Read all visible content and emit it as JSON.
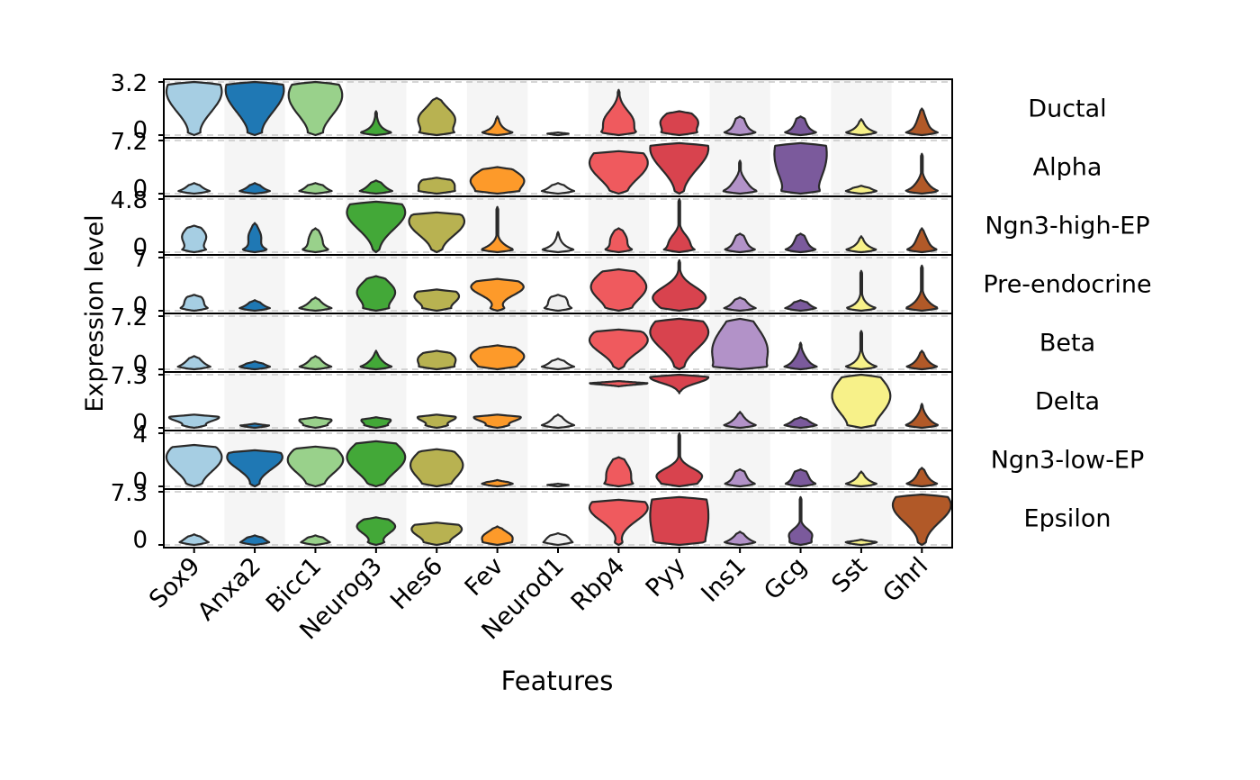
{
  "chart_data": {
    "type": "violin",
    "title": "",
    "xlabel": "Features",
    "ylabel": "Expression level",
    "features": [
      "Sox9",
      "Anxa2",
      "Bicc1",
      "Neurog3",
      "Hes6",
      "Fev",
      "Neurod1",
      "Rbp4",
      "Pyy",
      "Ins1",
      "Gcg",
      "Sst",
      "Ghrl"
    ],
    "colors": [
      "#a6cee3",
      "#1f78b4",
      "#99d18b",
      "#43a838",
      "#b8b251",
      "#fd9a2a",
      "#f0f0f0",
      "#ef5a5e",
      "#d8434e",
      "#b292c8",
      "#7b5a9c",
      "#f7f189",
      "#b15928"
    ],
    "grid_stripes": "alternating light grey column bands",
    "panels": [
      {
        "cluster": "Ductal",
        "ymax_label": "3.2",
        "ymin_label": "0",
        "violins": [
          {
            "c": 0.82,
            "w": 0.95,
            "s": 0.55,
            "b": 0.15
          },
          {
            "c": 0.85,
            "w": 1.0,
            "s": 0.6,
            "b": 0.15
          },
          {
            "c": 0.75,
            "w": 0.92,
            "s": 0.55,
            "b": 0.15
          },
          {
            "c": 0.1,
            "w": 0.05,
            "s": 0.25,
            "b": 0.9,
            "t": 0.45
          },
          {
            "c": 0.3,
            "w": 0.62,
            "s": 0.3,
            "b": 0.55,
            "t": 0.7
          },
          {
            "c": 0.1,
            "w": 0.04,
            "s": 0.25,
            "b": 0.9,
            "t": 0.35
          },
          {
            "c": 0.1,
            "w": 0.02,
            "s": 0.2,
            "b": 0.9,
            "t": 0.05
          },
          {
            "c": 0.25,
            "w": 0.5,
            "s": 0.3,
            "b": 0.55,
            "t": 0.85
          },
          {
            "c": 0.25,
            "w": 0.62,
            "s": 0.25,
            "b": 0.55,
            "t": 0.45
          },
          {
            "c": 0.2,
            "w": 0.15,
            "s": 0.25,
            "b": 0.8,
            "t": 0.35
          },
          {
            "c": 0.2,
            "w": 0.15,
            "s": 0.25,
            "b": 0.8,
            "t": 0.35
          },
          {
            "c": 0.1,
            "w": 0.04,
            "s": 0.2,
            "b": 0.9,
            "t": 0.3
          },
          {
            "c": 0.2,
            "w": 0.15,
            "s": 0.25,
            "b": 0.8,
            "t": 0.5
          }
        ]
      },
      {
        "cluster": "Alpha",
        "ymax_label": "7.2",
        "ymin_label": "0",
        "violins": [
          {
            "c": 0.1,
            "w": 0.08,
            "s": 0.15,
            "b": 0.85,
            "t": 0.2
          },
          {
            "c": 0.1,
            "w": 0.06,
            "s": 0.15,
            "b": 0.85,
            "t": 0.2
          },
          {
            "c": 0.12,
            "w": 0.15,
            "s": 0.15,
            "b": 0.8,
            "t": 0.2
          },
          {
            "c": 0.12,
            "w": 0.15,
            "s": 0.15,
            "b": 0.8,
            "t": 0.25
          },
          {
            "c": 0.18,
            "w": 0.55,
            "s": 0.2,
            "b": 0.5,
            "t": 0.3
          },
          {
            "c": 0.25,
            "w": 0.9,
            "s": 0.28,
            "b": 0.4,
            "t": 0.5
          },
          {
            "c": 0.1,
            "w": 0.1,
            "s": 0.15,
            "b": 0.85,
            "t": 0.2
          },
          {
            "c": 0.58,
            "w": 1.0,
            "s": 0.45,
            "b": 0.1,
            "t": 0.8
          },
          {
            "c": 0.85,
            "w": 1.0,
            "s": 0.55,
            "b": 0.08,
            "t": 0.95
          },
          {
            "c": 0.15,
            "w": 0.2,
            "s": 0.2,
            "b": 0.8,
            "t": 0.62
          },
          {
            "c": 0.75,
            "w": 0.9,
            "s": 0.9,
            "b": 0.35,
            "t": 0.95
          },
          {
            "c": 0.1,
            "w": 0.04,
            "s": 0.2,
            "b": 0.9,
            "t": 0.15
          },
          {
            "c": 0.12,
            "w": 0.15,
            "s": 0.2,
            "b": 0.8,
            "t": 0.75
          }
        ]
      },
      {
        "cluster": "Ngn3-high-EP",
        "ymax_label": "4.8",
        "ymin_label": "0",
        "violins": [
          {
            "c": 0.3,
            "w": 0.4,
            "s": 0.22,
            "b": 0.55,
            "t": 0.5
          },
          {
            "c": 0.3,
            "w": 0.2,
            "s": 0.2,
            "b": 0.7,
            "t": 0.55
          },
          {
            "c": 0.25,
            "w": 0.2,
            "s": 0.2,
            "b": 0.7,
            "t": 0.45
          },
          {
            "c": 0.75,
            "w": 1.0,
            "s": 0.45,
            "b": 0.05,
            "t": 0.95
          },
          {
            "c": 0.58,
            "w": 0.95,
            "s": 0.38,
            "b": 0.1,
            "t": 0.75
          },
          {
            "c": 0.08,
            "w": 0.12,
            "s": 0.15,
            "b": 0.85,
            "t": 0.85
          },
          {
            "c": 0.1,
            "w": 0.05,
            "s": 0.2,
            "b": 0.9,
            "t": 0.38
          },
          {
            "c": 0.25,
            "w": 0.25,
            "s": 0.2,
            "b": 0.7,
            "t": 0.45
          },
          {
            "c": 0.2,
            "w": 0.3,
            "s": 0.2,
            "b": 0.65,
            "t": 1.0
          },
          {
            "c": 0.2,
            "w": 0.15,
            "s": 0.2,
            "b": 0.8,
            "t": 0.35
          },
          {
            "c": 0.2,
            "w": 0.15,
            "s": 0.2,
            "b": 0.8,
            "t": 0.35
          },
          {
            "c": 0.1,
            "w": 0.03,
            "s": 0.2,
            "b": 0.9,
            "t": 0.3
          },
          {
            "c": 0.2,
            "w": 0.15,
            "s": 0.2,
            "b": 0.8,
            "t": 0.45
          }
        ]
      },
      {
        "cluster": "Pre-endocrine",
        "ymax_label": "7",
        "ymin_label": "0",
        "violins": [
          {
            "c": 0.2,
            "w": 0.25,
            "s": 0.15,
            "b": 0.7,
            "t": 0.3
          },
          {
            "c": 0.1,
            "w": 0.06,
            "s": 0.15,
            "b": 0.85,
            "t": 0.2
          },
          {
            "c": 0.1,
            "w": 0.1,
            "s": 0.15,
            "b": 0.85,
            "t": 0.25
          },
          {
            "c": 0.35,
            "w": 0.65,
            "s": 0.3,
            "b": 0.4,
            "t": 0.65
          },
          {
            "c": 0.28,
            "w": 0.75,
            "s": 0.22,
            "b": 0.45,
            "t": 0.4
          },
          {
            "c": 0.45,
            "w": 0.9,
            "s": 0.22,
            "b": 0.4,
            "t": 0.6
          },
          {
            "c": 0.2,
            "w": 0.25,
            "s": 0.15,
            "b": 0.7,
            "t": 0.3
          },
          {
            "c": 0.45,
            "w": 0.95,
            "s": 0.4,
            "b": 0.2,
            "t": 0.78
          },
          {
            "c": 0.25,
            "w": 0.9,
            "s": 0.28,
            "b": 0.2,
            "t": 0.95
          },
          {
            "c": 0.15,
            "w": 0.12,
            "s": 0.15,
            "b": 0.85,
            "t": 0.25
          },
          {
            "c": 0.15,
            "w": 0.1,
            "s": 0.15,
            "b": 0.85,
            "t": 0.2
          },
          {
            "c": 0.1,
            "w": 0.03,
            "s": 0.2,
            "b": 0.9,
            "t": 0.75
          },
          {
            "c": 0.1,
            "w": 0.15,
            "s": 0.2,
            "b": 0.8,
            "t": 0.85
          }
        ]
      },
      {
        "cluster": "Beta",
        "ymax_label": "7.2",
        "ymin_label": "0",
        "violins": [
          {
            "c": 0.12,
            "w": 0.15,
            "s": 0.15,
            "b": 0.8,
            "t": 0.25
          },
          {
            "c": 0.1,
            "w": 0.04,
            "s": 0.15,
            "b": 0.9,
            "t": 0.15
          },
          {
            "c": 0.12,
            "w": 0.1,
            "s": 0.15,
            "b": 0.85,
            "t": 0.25
          },
          {
            "c": 0.12,
            "w": 0.1,
            "s": 0.15,
            "b": 0.85,
            "t": 0.35
          },
          {
            "c": 0.2,
            "w": 0.6,
            "s": 0.2,
            "b": 0.5,
            "t": 0.35
          },
          {
            "c": 0.25,
            "w": 0.9,
            "s": 0.25,
            "b": 0.35,
            "t": 0.45
          },
          {
            "c": 0.1,
            "w": 0.1,
            "s": 0.15,
            "b": 0.85,
            "t": 0.2
          },
          {
            "c": 0.55,
            "w": 1.0,
            "s": 0.35,
            "b": 0.1,
            "t": 0.75
          },
          {
            "c": 0.7,
            "w": 1.0,
            "s": 0.45,
            "b": 0.1,
            "t": 0.95
          },
          {
            "c": 0.35,
            "w": 0.95,
            "s": 0.65,
            "b": 0.35,
            "t": 0.95
          },
          {
            "c": 0.15,
            "w": 0.15,
            "s": 0.2,
            "b": 0.8,
            "t": 0.5
          },
          {
            "c": 0.12,
            "w": 0.06,
            "s": 0.2,
            "b": 0.9,
            "t": 0.72
          },
          {
            "c": 0.12,
            "w": 0.1,
            "s": 0.2,
            "b": 0.8,
            "t": 0.35
          }
        ]
      },
      {
        "cluster": "Delta",
        "ymax_label": "7.3",
        "ymin_label": "0",
        "violins": [
          {
            "c": 0.2,
            "w": 0.8,
            "s": 0.1,
            "b": 0.6,
            "t": 0.25
          },
          {
            "c": 0.05,
            "w": 0.06,
            "s": 0.1,
            "b": 0.85,
            "t": 0.08
          },
          {
            "c": 0.15,
            "w": 0.45,
            "s": 0.08,
            "b": 0.6,
            "t": 0.2
          },
          {
            "c": 0.15,
            "w": 0.4,
            "s": 0.08,
            "b": 0.6,
            "t": 0.2
          },
          {
            "c": 0.2,
            "w": 0.6,
            "s": 0.1,
            "b": 0.6,
            "t": 0.25
          },
          {
            "c": 0.2,
            "w": 0.75,
            "s": 0.1,
            "b": 0.6,
            "t": 0.25
          },
          {
            "c": 0.1,
            "w": 0.1,
            "s": 0.15,
            "b": 0.85,
            "t": 0.25
          },
          {
            "c": 0.85,
            "w": 1.0,
            "s": 0.1,
            "b": 0.35,
            "t": 0.88,
            "f": 0.78
          },
          {
            "c": 0.95,
            "w": 1.0,
            "s": 0.15,
            "b": 0.3,
            "t": 1.0,
            "f": 0.65
          },
          {
            "c": 0.1,
            "w": 0.1,
            "s": 0.15,
            "b": 0.85,
            "t": 0.3
          },
          {
            "c": 0.1,
            "w": 0.1,
            "s": 0.15,
            "b": 0.85,
            "t": 0.2
          },
          {
            "c": 0.6,
            "w": 1.0,
            "s": 0.55,
            "b": 0.2,
            "t": 1.0
          },
          {
            "c": 0.12,
            "w": 0.15,
            "s": 0.2,
            "b": 0.8,
            "t": 0.45
          }
        ]
      },
      {
        "cluster": "Ngn3-low-EP",
        "ymax_label": "4",
        "ymin_label": "0",
        "violins": [
          {
            "c": 0.55,
            "w": 0.95,
            "s": 0.4,
            "b": 0.15,
            "t": 0.78
          },
          {
            "c": 0.55,
            "w": 0.95,
            "s": 0.32,
            "b": 0.15,
            "t": 0.68
          },
          {
            "c": 0.5,
            "w": 0.95,
            "s": 0.38,
            "b": 0.15,
            "t": 0.75
          },
          {
            "c": 0.55,
            "w": 1.0,
            "s": 0.42,
            "b": 0.1,
            "t": 0.85
          },
          {
            "c": 0.4,
            "w": 0.9,
            "s": 0.4,
            "b": 0.15,
            "t": 0.7
          },
          {
            "c": 0.05,
            "w": 0.04,
            "s": 0.1,
            "b": 0.9,
            "t": 0.12
          },
          {
            "c": 0.05,
            "w": 0.02,
            "s": 0.1,
            "b": 0.9,
            "t": 0.05
          },
          {
            "c": 0.25,
            "w": 0.4,
            "s": 0.3,
            "b": 0.45,
            "t": 0.55
          },
          {
            "c": 0.2,
            "w": 0.75,
            "s": 0.2,
            "b": 0.35,
            "t": 1.0
          },
          {
            "c": 0.2,
            "w": 0.15,
            "s": 0.2,
            "b": 0.8,
            "t": 0.32
          },
          {
            "c": 0.2,
            "w": 0.2,
            "s": 0.2,
            "b": 0.75,
            "t": 0.32
          },
          {
            "c": 0.1,
            "w": 0.04,
            "s": 0.15,
            "b": 0.9,
            "t": 0.28
          },
          {
            "c": 0.15,
            "w": 0.12,
            "s": 0.2,
            "b": 0.8,
            "t": 0.35
          }
        ]
      },
      {
        "cluster": "Epsilon",
        "ymax_label": "7.3",
        "ymin_label": "0",
        "violins": [
          {
            "c": 0.1,
            "w": 0.15,
            "s": 0.1,
            "b": 0.7,
            "t": 0.2
          },
          {
            "c": 0.1,
            "w": 0.15,
            "s": 0.1,
            "b": 0.7,
            "t": 0.18
          },
          {
            "c": 0.1,
            "w": 0.15,
            "s": 0.1,
            "b": 0.7,
            "t": 0.18
          },
          {
            "c": 0.35,
            "w": 0.65,
            "s": 0.2,
            "b": 0.4,
            "t": 0.52
          },
          {
            "c": 0.3,
            "w": 0.85,
            "s": 0.22,
            "b": 0.4,
            "t": 0.42
          },
          {
            "c": 0.15,
            "w": 0.45,
            "s": 0.15,
            "b": 0.4,
            "t": 0.35
          },
          {
            "c": 0.12,
            "w": 0.25,
            "s": 0.12,
            "b": 0.6,
            "t": 0.22
          },
          {
            "c": 0.7,
            "w": 1.0,
            "s": 0.35,
            "b": 0.2,
            "t": 0.85
          },
          {
            "c": 0.55,
            "w": 1.0,
            "s": 1.2,
            "b": 0.1,
            "t": 0.9
          },
          {
            "c": 0.1,
            "w": 0.1,
            "s": 0.15,
            "b": 0.8,
            "t": 0.25
          },
          {
            "c": 0.2,
            "w": 0.35,
            "s": 0.15,
            "b": 0.5,
            "t": 0.9
          },
          {
            "c": 0.05,
            "w": 0.04,
            "s": 0.1,
            "b": 0.9,
            "t": 0.1
          },
          {
            "c": 0.75,
            "w": 1.0,
            "s": 0.45,
            "b": 0.1,
            "t": 0.95
          }
        ]
      }
    ]
  }
}
